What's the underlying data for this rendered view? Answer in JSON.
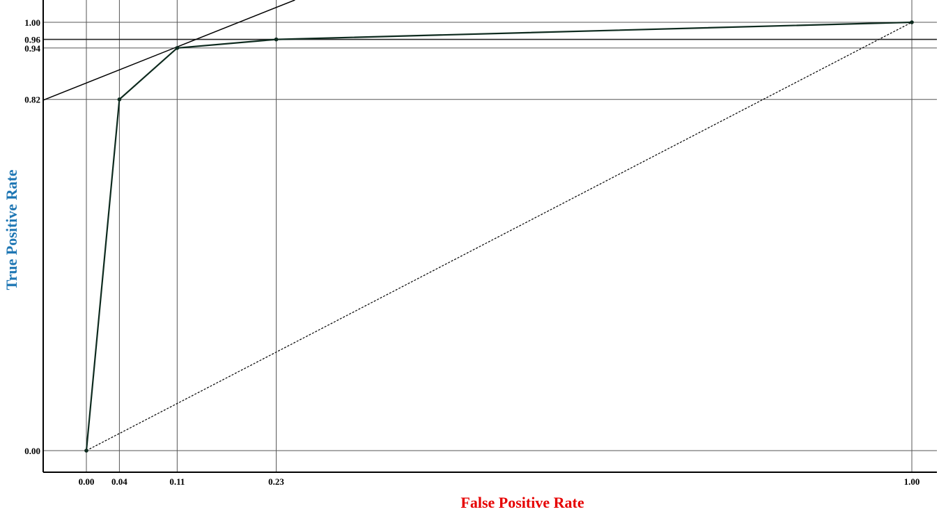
{
  "chart_data": {
    "type": "line",
    "title": "",
    "xlabel": "False Positive Rate",
    "ylabel": "True Positive Rate",
    "xlim": [
      0,
      1
    ],
    "ylim": [
      0,
      1
    ],
    "x_ticks": [
      {
        "value": 0.0,
        "label": "0.00"
      },
      {
        "value": 0.04,
        "label": "0.04"
      },
      {
        "value": 0.11,
        "label": "0.11"
      },
      {
        "value": 0.23,
        "label": "0.23"
      },
      {
        "value": 1.0,
        "label": "1.00"
      }
    ],
    "y_ticks": [
      {
        "value": 0.0,
        "label": "0.00"
      },
      {
        "value": 0.82,
        "label": "0.82"
      },
      {
        "value": 0.94,
        "label": "0.94"
      },
      {
        "value": 0.96,
        "label": "0.96"
      },
      {
        "value": 1.0,
        "label": "1.00"
      }
    ],
    "grid": true,
    "series": [
      {
        "type": "roc-curve",
        "color": "#0d2a1e",
        "points": [
          [
            0.0,
            0.0
          ],
          [
            0.04,
            0.82
          ],
          [
            0.11,
            0.94
          ],
          [
            0.23,
            0.96
          ],
          [
            1.0,
            1.0
          ]
        ]
      }
    ],
    "reference_lines": [
      {
        "type": "diagonal",
        "style": "dotted",
        "from": [
          0,
          0
        ],
        "to": [
          1,
          1
        ]
      },
      {
        "type": "tangent",
        "style": "solid",
        "from": [
          -0.05,
          0.82
        ],
        "to": [
          0.25,
          1.05
        ]
      }
    ]
  }
}
